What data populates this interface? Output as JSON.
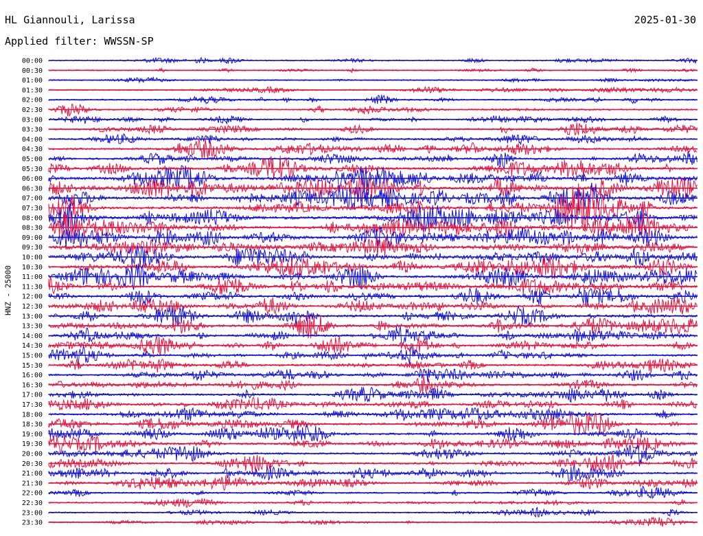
{
  "header": {
    "station": "HL Giannouli, Larissa",
    "date": "2025-01-30",
    "filter": "Applied filter: WWSSN-SP"
  },
  "colors": {
    "blue": "#1010d8",
    "red": "#e8103c"
  },
  "chart_data": {
    "type": "line",
    "title": "HL Giannouli, Larissa",
    "subtitle": "Applied filter: WWSSN-SP",
    "ylabel": "HNZ - 25000",
    "row_labels": [
      "00:00",
      "00:30",
      "01:00",
      "01:30",
      "02:00",
      "02:30",
      "03:00",
      "03:30",
      "04:00",
      "04:30",
      "05:00",
      "05:30",
      "06:00",
      "06:30",
      "07:00",
      "07:30",
      "08:00",
      "08:30",
      "09:00",
      "09:30",
      "10:00",
      "10:30",
      "11:00",
      "11:30",
      "12:00",
      "12:30",
      "13:00",
      "13:30",
      "14:00",
      "14:30",
      "15:00",
      "15:30",
      "16:00",
      "16:30",
      "17:00",
      "17:30",
      "18:00",
      "18:30",
      "19:00",
      "19:30",
      "20:00",
      "20:30",
      "21:00",
      "21:30",
      "22:00",
      "22:30",
      "23:00",
      "23:30"
    ],
    "row_colors": [
      "blue",
      "red"
    ],
    "activity": [
      0.15,
      0.12,
      0.12,
      0.15,
      0.25,
      0.25,
      0.3,
      0.35,
      0.4,
      0.45,
      0.5,
      0.7,
      0.85,
      0.85,
      0.8,
      0.8,
      0.8,
      0.8,
      0.8,
      0.8,
      0.75,
      0.75,
      0.7,
      0.7,
      0.65,
      0.65,
      0.6,
      0.6,
      0.55,
      0.55,
      0.5,
      0.5,
      0.5,
      0.45,
      0.45,
      0.5,
      0.5,
      0.5,
      0.55,
      0.5,
      0.45,
      0.45,
      0.45,
      0.35,
      0.3,
      0.25,
      0.2,
      0.2
    ],
    "grid": false
  }
}
